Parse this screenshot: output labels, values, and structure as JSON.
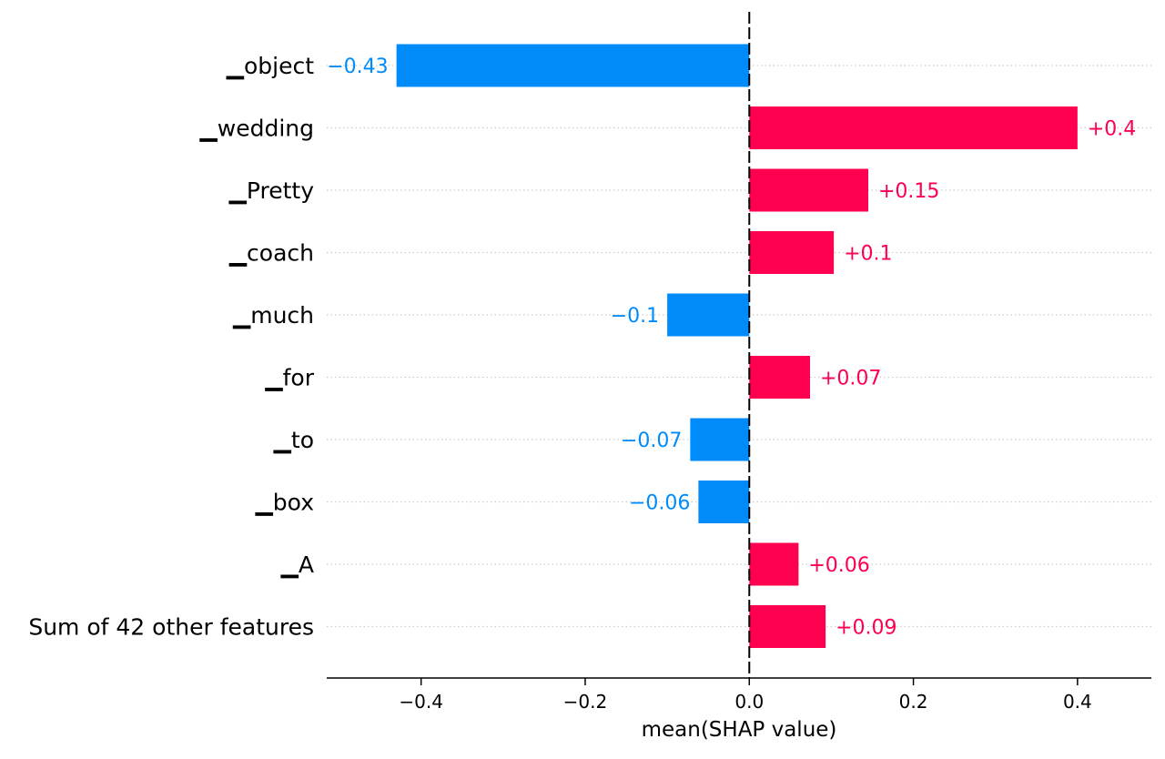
{
  "chart_data": {
    "type": "bar",
    "orientation": "horizontal",
    "categories": [
      "▁object",
      "▁wedding",
      "▁Pretty",
      "▁coach",
      "▁much",
      "▁for",
      "▁to",
      "▁box",
      "▁A",
      "Sum of 42 other features"
    ],
    "values": [
      -0.43,
      0.4,
      0.145,
      0.103,
      -0.1,
      0.074,
      -0.072,
      -0.062,
      0.06,
      0.093
    ],
    "value_labels": [
      "−0.43",
      "+0.4",
      "+0.15",
      "+0.1",
      "−0.1",
      "+0.07",
      "−0.07",
      "−0.06",
      "+0.06",
      "+0.09"
    ],
    "xlabel": "mean(SHAP value)",
    "ylabel": "",
    "title": "",
    "xlim": [
      -0.515,
      0.49
    ],
    "xticks": [
      -0.4,
      -0.2,
      0.0,
      0.2,
      0.4
    ],
    "xtick_labels": [
      "−0.4",
      "−0.2",
      "0.0",
      "0.2",
      "0.4"
    ],
    "grid": "horizontal dotted",
    "colors": {
      "positive": "#ff0051",
      "negative": "#008bfb",
      "axis": "#000000",
      "grid": "#cccccc"
    }
  }
}
